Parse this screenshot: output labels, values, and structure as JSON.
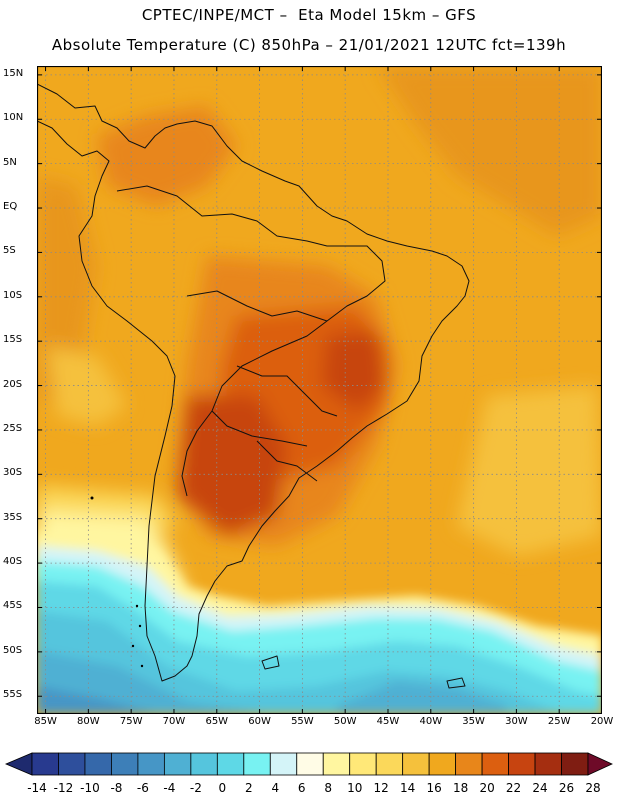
{
  "header": {
    "line1": "CPTEC/INPE/MCT –  Eta Model 15km – GFS",
    "line2": "Absolute Temperature (C) 850hPa – 21/01/2021 12UTC fct=139h"
  },
  "map": {
    "lat_labels": [
      "15N",
      "10N",
      "5N",
      "EQ",
      "5S",
      "10S",
      "15S",
      "20S",
      "25S",
      "30S",
      "35S",
      "40S",
      "45S",
      "50S",
      "55S"
    ],
    "lon_labels": [
      "85W",
      "80W",
      "75W",
      "70W",
      "65W",
      "60W",
      "55W",
      "50W",
      "45W",
      "40W",
      "35W",
      "30W",
      "25W",
      "20W"
    ],
    "lat_range": [
      -57,
      16
    ],
    "lon_range": [
      -86,
      -20
    ],
    "grid": "dotted"
  },
  "colorbar": {
    "labels": [
      "-14",
      "-12",
      "-10",
      "-8",
      "-6",
      "-4",
      "-2",
      "0",
      "2",
      "4",
      "6",
      "8",
      "10",
      "12",
      "14",
      "16",
      "18",
      "20",
      "22",
      "24",
      "26",
      "28"
    ],
    "colors": [
      "#283a8f",
      "#2e4f9c",
      "#3568aa",
      "#3d7fb8",
      "#4696c6",
      "#4fb0d3",
      "#55c5dd",
      "#5ed8e6",
      "#78f2f2",
      "#d4f4f8",
      "#fffce6",
      "#fff6a0",
      "#ffe878",
      "#fbd85a",
      "#f5c13c",
      "#f0a81e",
      "#e8861a",
      "#dc5f10",
      "#c74410",
      "#a52e10",
      "#7f1d12"
    ],
    "under_color": "#1e2a6e",
    "over_color": "#6e0a28"
  }
}
